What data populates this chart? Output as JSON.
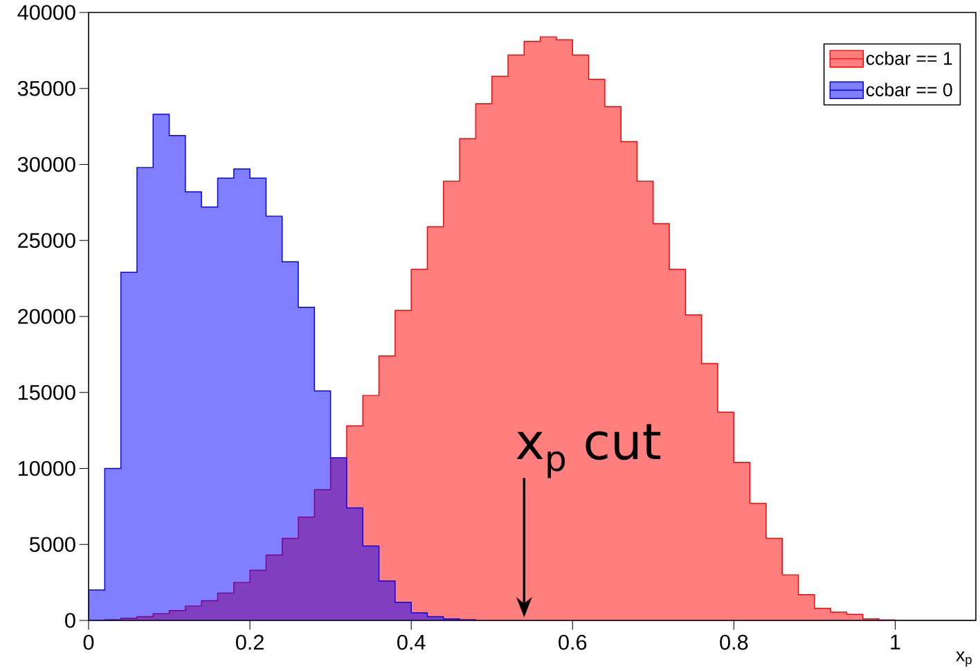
{
  "chart_data": {
    "type": "histogram",
    "bins": [
      0,
      0.02,
      0.04,
      0.06,
      0.08,
      0.1,
      0.12,
      0.14,
      0.16,
      0.18,
      0.2,
      0.22,
      0.24,
      0.26,
      0.28,
      0.3,
      0.32,
      0.34,
      0.36,
      0.38,
      0.4,
      0.42,
      0.44,
      0.46,
      0.48,
      0.5,
      0.52,
      0.54,
      0.56,
      0.58,
      0.6,
      0.62,
      0.64,
      0.66,
      0.68,
      0.7,
      0.72,
      0.74,
      0.76,
      0.78,
      0.8,
      0.82,
      0.84,
      0.86,
      0.88,
      0.9,
      0.92,
      0.94,
      0.96,
      0.98,
      1.0,
      1.02,
      1.04,
      1.06,
      1.08,
      1.1
    ],
    "series": [
      {
        "name": "ccbar == 1",
        "color": "#ff0000",
        "values": [
          0,
          50,
          150,
          250,
          450,
          650,
          950,
          1300,
          1800,
          2500,
          3300,
          4300,
          5400,
          6800,
          8600,
          10700,
          12800,
          14800,
          17400,
          20400,
          23100,
          25900,
          28900,
          31700,
          34000,
          35800,
          37200,
          38100,
          38400,
          38200,
          37200,
          35600,
          33800,
          31500,
          28900,
          26100,
          23100,
          20100,
          16900,
          13700,
          10400,
          7700,
          5400,
          3000,
          1700,
          800,
          550,
          400,
          100,
          30,
          0,
          0,
          0,
          0,
          0
        ]
      },
      {
        "name": "ccbar == 0",
        "color": "#0000ff",
        "values": [
          2000,
          10000,
          22900,
          29800,
          33300,
          31900,
          28200,
          27200,
          29100,
          29700,
          29100,
          26600,
          23600,
          20600,
          15100,
          10700,
          7400,
          4900,
          2600,
          1200,
          500,
          250,
          100,
          50,
          0,
          0,
          0,
          0,
          0,
          0,
          0,
          0,
          0,
          0,
          0,
          0,
          0,
          0,
          0,
          0,
          0,
          0,
          0,
          0,
          0,
          0,
          0,
          0,
          0,
          0,
          0,
          0,
          0,
          0,
          0
        ]
      }
    ],
    "xlabel": "x$_{p}$",
    "xlim": [
      0,
      1.1
    ],
    "ylim": [
      0,
      40000
    ],
    "xticks": [
      0,
      0.2,
      0.4,
      0.6,
      0.8,
      1
    ],
    "yticks": [
      0,
      5000,
      10000,
      15000,
      20000,
      25000,
      30000,
      35000,
      40000
    ],
    "annotations": [
      {
        "text": "x$_{p}$ cut",
        "x": 0.54,
        "y": 0
      }
    ],
    "legend": "top right",
    "grid": false
  }
}
